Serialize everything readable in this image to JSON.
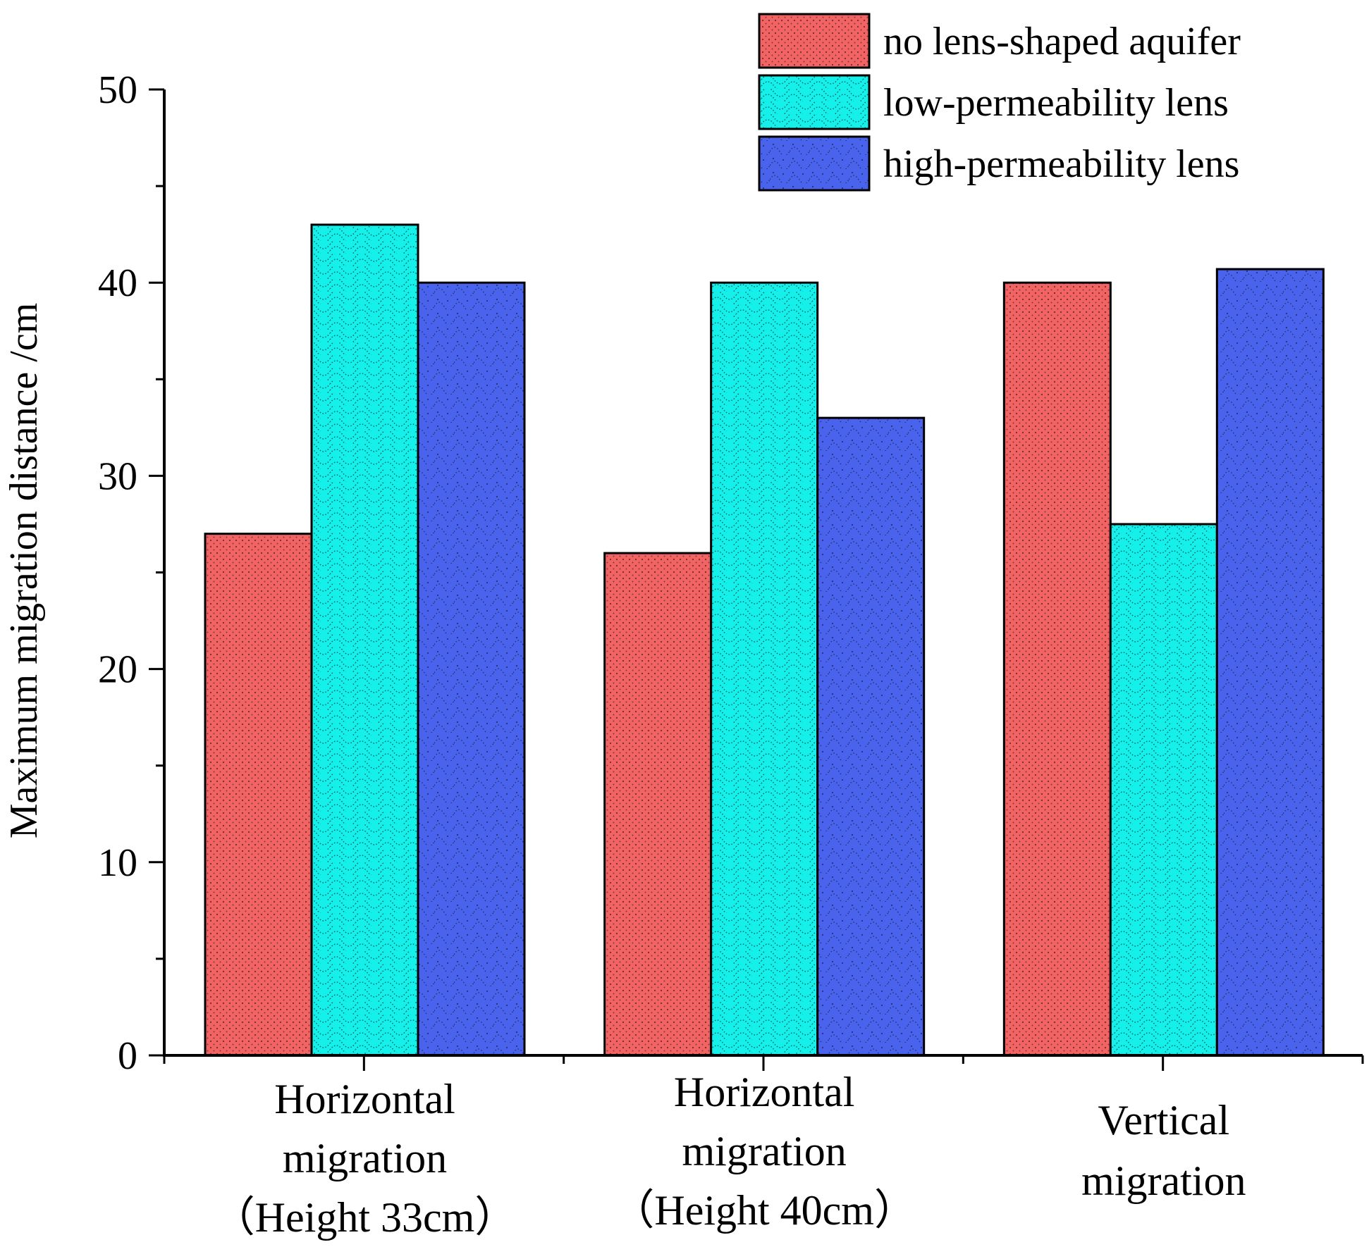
{
  "chart_data": {
    "type": "bar",
    "title": "",
    "xlabel": "",
    "ylabel": "Maximum migration distance /cm",
    "ylim": [
      0,
      50
    ],
    "yticks": [
      "0",
      "10",
      "20",
      "30",
      "40",
      "50"
    ],
    "categories": [
      [
        "Horizontal",
        "migration",
        "（Height 33cm）"
      ],
      [
        "Horizontal",
        "migration",
        "（Height 40cm）"
      ],
      [
        "Vertical",
        "migration"
      ]
    ],
    "series": [
      {
        "name": "no lens-shaped aquifer",
        "color": "#f26464",
        "values": [
          27,
          26,
          40
        ]
      },
      {
        "name": "low-permeability lens",
        "color": "#16f0ea",
        "values": [
          43,
          40,
          27.5
        ]
      },
      {
        "name": "high-permeability lens",
        "color": "#4a63ec",
        "values": [
          40,
          33,
          40.7
        ]
      }
    ],
    "legend_position": "top-right",
    "grid": false
  }
}
